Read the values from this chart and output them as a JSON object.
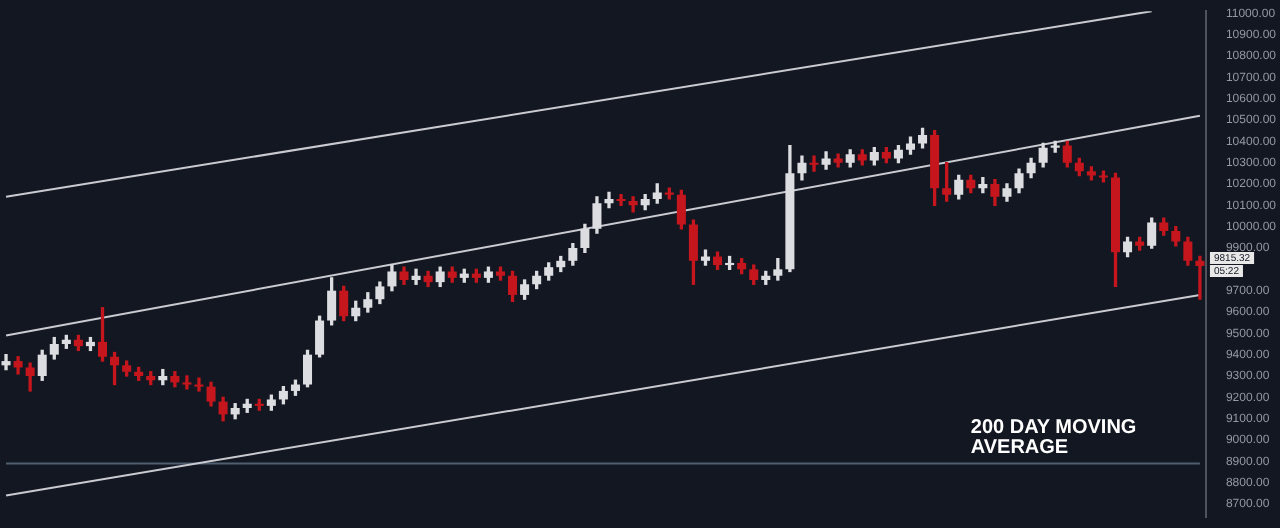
{
  "chart_data": {
    "type": "candlestick",
    "categories": [
      null,
      null,
      null,
      null,
      null,
      null,
      null,
      null,
      null,
      null,
      null,
      null,
      null,
      null,
      null,
      null,
      null,
      null,
      null,
      null,
      null,
      null,
      null,
      null,
      null,
      null,
      null,
      null,
      null,
      null,
      null,
      null,
      null,
      null,
      null,
      null,
      null,
      null,
      null,
      null,
      null,
      null,
      null,
      null,
      null,
      null,
      null,
      null,
      null,
      null,
      null,
      null,
      null,
      null,
      null,
      null,
      null,
      null,
      null,
      null,
      null,
      null,
      null,
      null,
      null,
      null,
      null,
      null,
      null,
      null,
      null,
      null,
      null,
      null,
      null,
      null,
      null,
      null,
      null,
      null,
      null,
      null,
      null,
      null,
      null,
      null,
      null,
      null,
      null,
      null,
      null,
      null,
      null,
      null,
      null,
      null,
      null,
      null,
      null,
      null
    ],
    "ohlc": [
      [
        9350,
        9400,
        9330,
        9370
      ],
      [
        9370,
        9390,
        9310,
        9340
      ],
      [
        9340,
        9360,
        9230,
        9300
      ],
      [
        9300,
        9420,
        9280,
        9400
      ],
      [
        9400,
        9480,
        9380,
        9450
      ],
      [
        9450,
        9490,
        9430,
        9470
      ],
      [
        9470,
        9490,
        9420,
        9440
      ],
      [
        9440,
        9480,
        9420,
        9460
      ],
      [
        9460,
        9620,
        9370,
        9390
      ],
      [
        9390,
        9410,
        9260,
        9350
      ],
      [
        9350,
        9370,
        9300,
        9320
      ],
      [
        9320,
        9340,
        9280,
        9300
      ],
      [
        9300,
        9320,
        9260,
        9280
      ],
      [
        9280,
        9330,
        9260,
        9300
      ],
      [
        9300,
        9320,
        9250,
        9270
      ],
      [
        9270,
        9300,
        9240,
        9260
      ],
      [
        9260,
        9290,
        9230,
        9250
      ],
      [
        9250,
        9270,
        9160,
        9180
      ],
      [
        9180,
        9200,
        9090,
        9120
      ],
      [
        9120,
        9170,
        9100,
        9150
      ],
      [
        9150,
        9190,
        9130,
        9170
      ],
      [
        9170,
        9190,
        9140,
        9160
      ],
      [
        9160,
        9210,
        9140,
        9190
      ],
      [
        9190,
        9250,
        9170,
        9230
      ],
      [
        9230,
        9280,
        9210,
        9260
      ],
      [
        9260,
        9420,
        9250,
        9400
      ],
      [
        9400,
        9580,
        9390,
        9560
      ],
      [
        9560,
        9760,
        9540,
        9700
      ],
      [
        9700,
        9720,
        9560,
        9580
      ],
      [
        9580,
        9650,
        9560,
        9620
      ],
      [
        9620,
        9690,
        9600,
        9660
      ],
      [
        9660,
        9740,
        9640,
        9720
      ],
      [
        9720,
        9820,
        9700,
        9790
      ],
      [
        9790,
        9810,
        9730,
        9750
      ],
      [
        9750,
        9800,
        9730,
        9770
      ],
      [
        9770,
        9790,
        9720,
        9740
      ],
      [
        9740,
        9810,
        9720,
        9790
      ],
      [
        9790,
        9810,
        9740,
        9760
      ],
      [
        9760,
        9800,
        9740,
        9780
      ],
      [
        9780,
        9800,
        9740,
        9760
      ],
      [
        9760,
        9810,
        9740,
        9790
      ],
      [
        9790,
        9810,
        9750,
        9770
      ],
      [
        9770,
        9790,
        9650,
        9680
      ],
      [
        9680,
        9750,
        9660,
        9730
      ],
      [
        9730,
        9790,
        9710,
        9770
      ],
      [
        9770,
        9830,
        9750,
        9810
      ],
      [
        9810,
        9860,
        9790,
        9840
      ],
      [
        9840,
        9920,
        9820,
        9900
      ],
      [
        9900,
        10010,
        9880,
        9990
      ],
      [
        9990,
        10140,
        9970,
        10110
      ],
      [
        10110,
        10160,
        10090,
        10130
      ],
      [
        10130,
        10150,
        10100,
        10120
      ],
      [
        10120,
        10140,
        10070,
        10100
      ],
      [
        10100,
        10150,
        10080,
        10130
      ],
      [
        10130,
        10200,
        10110,
        10160
      ],
      [
        10160,
        10180,
        10130,
        10150
      ],
      [
        10150,
        10170,
        9990,
        10010
      ],
      [
        10010,
        10030,
        9730,
        9840
      ],
      [
        9840,
        9890,
        9820,
        9860
      ],
      [
        9860,
        9880,
        9800,
        9820
      ],
      [
        9820,
        9860,
        9800,
        9830
      ],
      [
        9830,
        9850,
        9780,
        9800
      ],
      [
        9800,
        9820,
        9730,
        9750
      ],
      [
        9750,
        9790,
        9730,
        9770
      ],
      [
        9770,
        9850,
        9750,
        9800
      ],
      [
        9800,
        10380,
        9790,
        10250
      ],
      [
        10250,
        10330,
        10220,
        10300
      ],
      [
        10300,
        10330,
        10260,
        10290
      ],
      [
        10290,
        10350,
        10270,
        10320
      ],
      [
        10320,
        10340,
        10280,
        10300
      ],
      [
        10300,
        10360,
        10280,
        10340
      ],
      [
        10340,
        10360,
        10290,
        10310
      ],
      [
        10310,
        10370,
        10290,
        10350
      ],
      [
        10350,
        10370,
        10300,
        10320
      ],
      [
        10320,
        10380,
        10300,
        10360
      ],
      [
        10360,
        10420,
        10340,
        10390
      ],
      [
        10390,
        10460,
        10370,
        10430
      ],
      [
        10430,
        10450,
        10100,
        10180
      ],
      [
        10180,
        10300,
        10120,
        10150
      ],
      [
        10150,
        10240,
        10130,
        10220
      ],
      [
        10220,
        10240,
        10160,
        10180
      ],
      [
        10180,
        10230,
        10160,
        10200
      ],
      [
        10200,
        10220,
        10100,
        10140
      ],
      [
        10140,
        10200,
        10120,
        10180
      ],
      [
        10180,
        10270,
        10160,
        10250
      ],
      [
        10250,
        10320,
        10230,
        10300
      ],
      [
        10300,
        10390,
        10280,
        10370
      ],
      [
        10370,
        10400,
        10350,
        10380
      ],
      [
        10380,
        10400,
        10280,
        10300
      ],
      [
        10300,
        10320,
        10240,
        10260
      ],
      [
        10260,
        10280,
        10220,
        10240
      ],
      [
        10240,
        10260,
        10210,
        10230
      ],
      [
        10230,
        10250,
        9720,
        9880
      ],
      [
        9880,
        9950,
        9860,
        9930
      ],
      [
        9930,
        9950,
        9890,
        9910
      ],
      [
        9910,
        10040,
        9900,
        10020
      ],
      [
        10020,
        10040,
        9960,
        9980
      ],
      [
        9980,
        10000,
        9910,
        9930
      ],
      [
        9930,
        9950,
        9820,
        9840
      ],
      [
        9840,
        9860,
        9660,
        9815.32
      ]
    ],
    "series": [
      {
        "type": "line",
        "color": "#c9cbd1",
        "values": [
          10140,
          null,
          null,
          null,
          null,
          null,
          null,
          null,
          null,
          null,
          null,
          null,
          null,
          null,
          null,
          null,
          null,
          null,
          null,
          null,
          null,
          null,
          null,
          null,
          null,
          null,
          null,
          null,
          null,
          null,
          null,
          null,
          null,
          null,
          null,
          null,
          null,
          null,
          null,
          null,
          null,
          null,
          null,
          null,
          null,
          null,
          null,
          null,
          null,
          null,
          null,
          null,
          null,
          null,
          null,
          null,
          null,
          null,
          null,
          null,
          null,
          null,
          null,
          null,
          null,
          null,
          null,
          null,
          null,
          null,
          null,
          null,
          null,
          null,
          null,
          null,
          null,
          null,
          null,
          null,
          null,
          null,
          null,
          null,
          null,
          null,
          null,
          null,
          null,
          null,
          null,
          null,
          null,
          null,
          null,
          11010,
          null,
          null,
          null,
          null
        ]
      },
      {
        "type": "line",
        "color": "#c9cbd1",
        "values": [
          9490,
          null,
          null,
          null,
          null,
          null,
          null,
          null,
          null,
          null,
          null,
          null,
          null,
          null,
          null,
          null,
          null,
          null,
          null,
          null,
          null,
          null,
          null,
          null,
          null,
          null,
          null,
          null,
          null,
          null,
          null,
          null,
          null,
          null,
          null,
          null,
          null,
          null,
          null,
          null,
          null,
          null,
          null,
          null,
          null,
          null,
          null,
          null,
          null,
          null,
          null,
          null,
          null,
          null,
          null,
          null,
          null,
          null,
          null,
          null,
          null,
          null,
          null,
          null,
          null,
          null,
          null,
          null,
          null,
          null,
          null,
          null,
          null,
          null,
          null,
          null,
          null,
          null,
          null,
          null,
          null,
          null,
          null,
          null,
          null,
          null,
          null,
          null,
          null,
          null,
          null,
          null,
          null,
          null,
          null,
          null,
          null,
          null,
          null,
          10520
        ]
      },
      {
        "type": "line",
        "color": "#c9cbd1",
        "values": [
          8740,
          null,
          null,
          null,
          null,
          null,
          null,
          null,
          null,
          null,
          null,
          null,
          null,
          null,
          null,
          null,
          null,
          null,
          null,
          null,
          null,
          null,
          null,
          null,
          null,
          null,
          null,
          null,
          null,
          null,
          null,
          null,
          null,
          null,
          null,
          null,
          null,
          null,
          null,
          null,
          null,
          null,
          null,
          null,
          null,
          null,
          null,
          null,
          null,
          null,
          null,
          null,
          null,
          null,
          null,
          null,
          null,
          null,
          null,
          null,
          null,
          null,
          null,
          null,
          null,
          null,
          null,
          null,
          null,
          null,
          null,
          null,
          null,
          null,
          null,
          null,
          null,
          null,
          null,
          null,
          null,
          null,
          null,
          null,
          null,
          null,
          null,
          null,
          null,
          null,
          null,
          null,
          null,
          null,
          null,
          null,
          null,
          null,
          null,
          9680
        ]
      },
      {
        "type": "line",
        "color": "#4f5f70",
        "values": [
          8890,
          null,
          null,
          null,
          null,
          null,
          null,
          null,
          null,
          null,
          null,
          null,
          null,
          null,
          null,
          null,
          null,
          null,
          null,
          null,
          null,
          null,
          null,
          null,
          null,
          null,
          null,
          null,
          null,
          null,
          null,
          null,
          null,
          null,
          null,
          null,
          null,
          null,
          null,
          null,
          null,
          null,
          null,
          null,
          null,
          null,
          null,
          null,
          null,
          null,
          null,
          null,
          null,
          null,
          null,
          null,
          null,
          null,
          null,
          null,
          null,
          null,
          null,
          null,
          null,
          null,
          null,
          null,
          null,
          null,
          null,
          null,
          null,
          null,
          null,
          null,
          null,
          null,
          null,
          null,
          null,
          null,
          null,
          null,
          null,
          null,
          null,
          null,
          null,
          null,
          null,
          null,
          null,
          null,
          null,
          null,
          null,
          null,
          null,
          8890
        ]
      }
    ],
    "ylim": [
      8640,
      11010
    ],
    "yticks": [
      {
        "value": 8700,
        "label": "8700.00"
      },
      {
        "value": 8800,
        "label": "8800.00"
      },
      {
        "value": 8900,
        "label": "8900.00"
      },
      {
        "value": 9000,
        "label": "9000.00"
      },
      {
        "value": 9100,
        "label": "9100.00"
      },
      {
        "value": 9200,
        "label": "9200.00"
      },
      {
        "value": 9300,
        "label": "9300.00"
      },
      {
        "value": 9400,
        "label": "9400.00"
      },
      {
        "value": 9500,
        "label": "9500.00"
      },
      {
        "value": 9600,
        "label": "9600.00"
      },
      {
        "value": 9700,
        "label": "9700.00"
      },
      {
        "value": 9900,
        "label": "9900.00"
      },
      {
        "value": 10000,
        "label": "10000.00"
      },
      {
        "value": 10100,
        "label": "10100.00"
      },
      {
        "value": 10200,
        "label": "10200.00"
      },
      {
        "value": 10300,
        "label": "10300.00"
      },
      {
        "value": 10400,
        "label": "10400.00"
      },
      {
        "value": 10500,
        "label": "10500.00"
      },
      {
        "value": 10600,
        "label": "10600.00"
      },
      {
        "value": 10700,
        "label": "10700.00"
      },
      {
        "value": 10800,
        "label": "10800.00"
      },
      {
        "value": 10900,
        "label": "10900.00"
      },
      {
        "value": 11000,
        "label": "11000.00"
      }
    ],
    "tick_labels": "y",
    "grid": false,
    "legend": false,
    "annotations": [
      {
        "text": "200 DAY MOVING AVERAGE",
        "y": 8890
      },
      "9815.32",
      "05:22"
    ]
  }
}
